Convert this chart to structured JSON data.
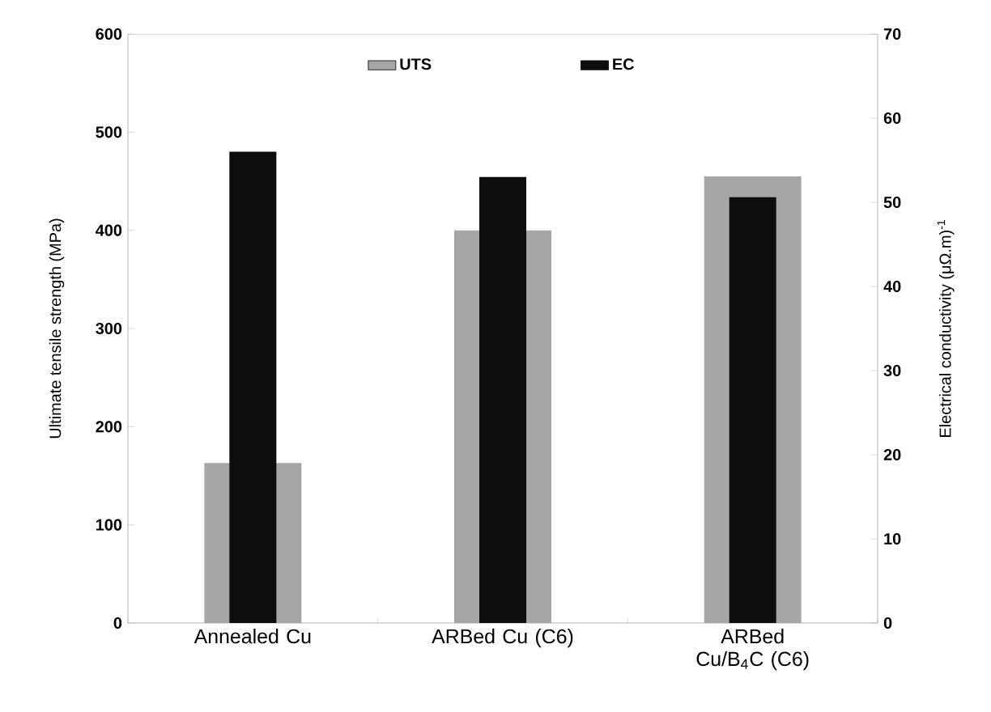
{
  "chart_data": {
    "type": "bar",
    "categories": [
      "Annealed Cu",
      "ARBed Cu (C6)",
      "ARBed Cu/B$_{4}$C (C6)"
    ],
    "series": [
      {
        "name": "UTS",
        "color": "#a6a6a6",
        "values": [
          163,
          400,
          455
        ],
        "axis": "y"
      },
      {
        "name": "EC",
        "color": "#0d0d0d",
        "values": [
          56,
          53,
          50.6
        ],
        "axis": "y2"
      }
    ],
    "ylabel": "Ultimate tensile strength (MPa)",
    "y2label": "Electrical conductivity (μΩ.m)$^{-1}$",
    "ylim": [
      0,
      600
    ],
    "yticks": [
      0,
      100,
      200,
      300,
      400,
      500,
      600
    ],
    "y2lim": [
      0,
      70
    ],
    "y2ticks": [
      0,
      10,
      20,
      30,
      40,
      50,
      60,
      70
    ],
    "legend": "top"
  }
}
